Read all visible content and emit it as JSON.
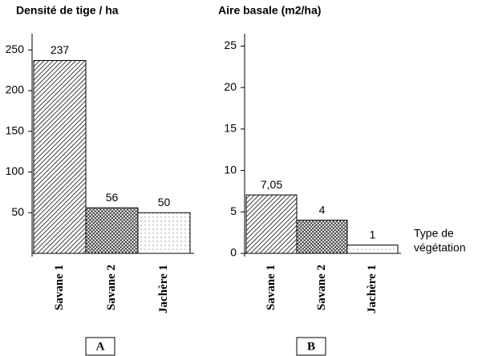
{
  "chart_data": [
    {
      "type": "bar",
      "title": "Densité de tige / ha",
      "categories": [
        "Savane 1",
        "Savane 2",
        "Jachère 1"
      ],
      "values": [
        237,
        56,
        50
      ],
      "patterns": [
        "diagonal",
        "crosshatch",
        "dots"
      ],
      "ylim": [
        0,
        270
      ],
      "yticks": [
        50,
        100,
        150,
        200,
        250
      ],
      "panel_label": "A"
    },
    {
      "type": "bar",
      "title": "Aire basale (m2/ha)",
      "categories": [
        "Savane 1",
        "Savane 2",
        "Jachère 1"
      ],
      "values": [
        7.05,
        4,
        1
      ],
      "value_labels": [
        "7,05",
        "4",
        "1"
      ],
      "patterns": [
        "diagonal",
        "crosshatch",
        "dots"
      ],
      "ylim": [
        0,
        26.5
      ],
      "yticks": [
        0,
        5,
        10,
        15,
        20,
        25
      ],
      "xlabel": [
        "Type de",
        "végétation"
      ],
      "panel_label": "B"
    }
  ]
}
